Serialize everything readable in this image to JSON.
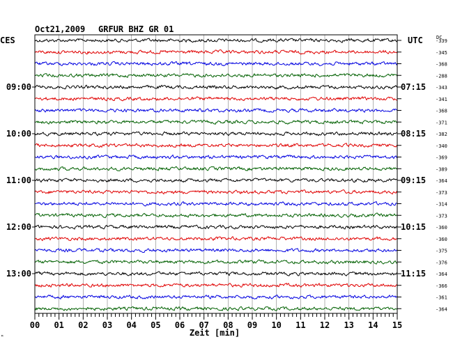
{
  "header": {
    "date": "Oct21,2009",
    "station": "GRFUR BHZ GR 01",
    "left_tz": "CES",
    "right_tz": "UTC",
    "dc_label": "DC"
  },
  "colors": {
    "trace_cycle": [
      "#000000",
      "#e00000",
      "#0000e0",
      "#006000"
    ],
    "frame": "#000000",
    "grid": "#808080"
  },
  "chart_data": {
    "type": "line",
    "title": "Oct21,2009   GRFUR BHZ GR 01",
    "xlabel": "Zeit [min]",
    "xlim": [
      0,
      15
    ],
    "x_ticks": [
      "00",
      "01",
      "02",
      "03",
      "04",
      "05",
      "06",
      "07",
      "08",
      "09",
      "10",
      "11",
      "12",
      "13",
      "14",
      "15"
    ],
    "trace_minutes": 15,
    "trace_count": 24,
    "grid": true,
    "left_time_labels": [
      {
        "trace": 4,
        "label": "09:00"
      },
      {
        "trace": 8,
        "label": "10:00"
      },
      {
        "trace": 12,
        "label": "11:00"
      },
      {
        "trace": 16,
        "label": "12:00"
      },
      {
        "trace": 20,
        "label": "13:00"
      }
    ],
    "right_time_labels": [
      {
        "trace": 4,
        "label": "07:15"
      },
      {
        "trace": 8,
        "label": "08:15"
      },
      {
        "trace": 12,
        "label": "09:15"
      },
      {
        "trace": 16,
        "label": "10:15"
      },
      {
        "trace": 20,
        "label": "11:15"
      }
    ],
    "dc_offsets": [
      "-339",
      "-345",
      "-368",
      "-288",
      "-343",
      "-341",
      "-368",
      "-371",
      "-382",
      "-340",
      "-369",
      "-389",
      "-364",
      "-373",
      "-314",
      "-373",
      "-360",
      "-360",
      "-375",
      "-376",
      "-364",
      "-366",
      "-361",
      "-364"
    ],
    "corner_mark": "ᴹ"
  }
}
